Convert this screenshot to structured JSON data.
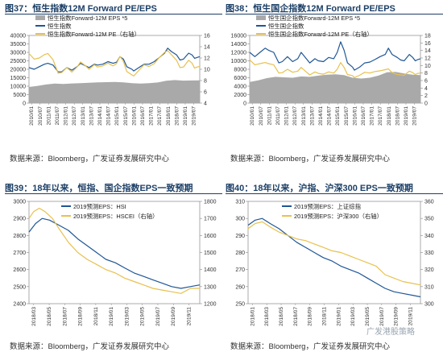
{
  "colors": {
    "navy": "#1f5696",
    "gold": "#e8c14e",
    "gray": "#a9a9a9",
    "title": "#1c3f66"
  },
  "chart_data": [
    {
      "id": "fig37",
      "type": "line",
      "title": "图37：恒生指数12M Forward PE/EPS",
      "source": "数据来源：Bloomberg，广发证券发展研究中心",
      "legend": [
        "恒生指数Forward-12M EPS *5",
        "恒生指数",
        "恒生指数Forward-12M PE（右轴）"
      ],
      "yleft": {
        "min": 0,
        "max": 40000,
        "ticks": [
          0,
          5000,
          10000,
          15000,
          20000,
          25000,
          30000,
          35000,
          40000
        ],
        "labels": [
          "0",
          "5000",
          "10000",
          "15000",
          "20000",
          "25000",
          "30000",
          "35000",
          "40000"
        ]
      },
      "yright": {
        "min": 4,
        "max": 16,
        "ticks": [
          4,
          6,
          8,
          10,
          12,
          14,
          16
        ],
        "labels": [
          "4",
          "6",
          "8",
          "10",
          "12",
          "14",
          "16"
        ]
      },
      "x_labels": [
        "2010/01",
        "2010/07",
        "2011/01",
        "2011/07",
        "2012/01",
        "2012/07",
        "2013/01",
        "2013/07",
        "2014/01",
        "2014/07",
        "2015/01",
        "2015/07",
        "2016/01",
        "2016/07",
        "2017/01",
        "2017/07",
        "2018/01",
        "2018/07",
        "2019/01",
        "2019/07"
      ],
      "x_range": [
        2010.0,
        2019.95
      ],
      "series": [
        {
          "name": "恒生指数Forward-12M EPS *5",
          "kind": "area",
          "color": "#a9a9a9",
          "axis": "left",
          "x": [
            2010.0,
            2010.5,
            2011.0,
            2011.5,
            2012.0,
            2012.5,
            2013.0,
            2013.5,
            2014.0,
            2014.5,
            2015.0,
            2015.5,
            2016.0,
            2016.5,
            2017.0,
            2017.5,
            2018.0,
            2018.5,
            2019.0,
            2019.5,
            2019.95
          ],
          "y": [
            9500,
            10200,
            11000,
            11500,
            11300,
            11600,
            11800,
            12000,
            12300,
            12400,
            12500,
            12300,
            11800,
            11500,
            11800,
            12200,
            13200,
            13600,
            13300,
            13400,
            13500
          ]
        },
        {
          "name": "恒生指数",
          "kind": "line",
          "color": "#1f5696",
          "axis": "left",
          "x": [
            2010.0,
            2010.3,
            2010.6,
            2010.9,
            2011.1,
            2011.4,
            2011.7,
            2011.9,
            2012.2,
            2012.5,
            2012.8,
            2013.0,
            2013.3,
            2013.5,
            2013.8,
            2014.0,
            2014.3,
            2014.6,
            2014.9,
            2015.1,
            2015.3,
            2015.5,
            2015.7,
            2016.0,
            2016.1,
            2016.4,
            2016.7,
            2017.0,
            2017.3,
            2017.6,
            2017.9,
            2018.08,
            2018.3,
            2018.6,
            2018.8,
            2019.0,
            2019.3,
            2019.5,
            2019.65,
            2019.8,
            2019.95
          ],
          "y": [
            21000,
            20000,
            21500,
            23000,
            23500,
            22500,
            18500,
            18500,
            21000,
            19500,
            21500,
            23500,
            22000,
            21000,
            23000,
            22500,
            23000,
            24500,
            23500,
            24200,
            27500,
            26000,
            21500,
            20000,
            19000,
            21000,
            23000,
            23000,
            24500,
            27000,
            29500,
            32500,
            30500,
            28500,
            25500,
            26000,
            29500,
            28500,
            26500,
            27000,
            27500
          ]
        },
        {
          "name": "恒生指数Forward-12M PE（右轴）",
          "kind": "line",
          "color": "#e8c14e",
          "axis": "right",
          "x": [
            2010.0,
            2010.3,
            2010.6,
            2010.9,
            2011.1,
            2011.4,
            2011.7,
            2011.9,
            2012.2,
            2012.5,
            2012.8,
            2013.0,
            2013.3,
            2013.5,
            2013.8,
            2014.0,
            2014.3,
            2014.6,
            2014.9,
            2015.1,
            2015.3,
            2015.5,
            2015.7,
            2016.0,
            2016.1,
            2016.4,
            2016.7,
            2017.0,
            2017.3,
            2017.6,
            2017.9,
            2018.08,
            2018.3,
            2018.6,
            2018.8,
            2019.0,
            2019.3,
            2019.5,
            2019.65,
            2019.8,
            2019.95
          ],
          "y": [
            12.8,
            11.8,
            12.0,
            12.6,
            12.8,
            11.7,
            9.3,
            9.4,
            10.3,
            9.5,
            10.4,
            11.3,
            10.6,
            10.0,
            10.8,
            10.4,
            10.6,
            11.1,
            10.6,
            11.0,
            12.3,
            11.4,
            9.6,
            9.0,
            8.8,
            9.8,
            10.8,
            10.5,
            11.0,
            12.1,
            13.0,
            13.3,
            12.6,
            11.6,
            10.3,
            10.4,
            11.6,
            11.1,
            10.2,
            10.4,
            10.5
          ]
        }
      ]
    },
    {
      "id": "fig38",
      "type": "line",
      "title": "图38：恒生国企指数12M Forward PE/EPS",
      "source": "数据来源：Bloomberg，广发证券发展研究中心",
      "legend": [
        "恒生国企指数Forward-12M EPS *5",
        "恒生国企指数",
        "恒生国企指数Forward-12M PE（右轴）"
      ],
      "yleft": {
        "min": 0,
        "max": 16000,
        "ticks": [
          0,
          2000,
          4000,
          6000,
          8000,
          10000,
          12000,
          14000,
          16000
        ],
        "labels": [
          "0",
          "2000",
          "4000",
          "6000",
          "8000",
          "10000",
          "12000",
          "14000",
          "16000"
        ]
      },
      "yright": {
        "min": 0,
        "max": 18,
        "ticks": [
          0,
          2,
          4,
          6,
          8,
          10,
          12,
          14,
          16,
          18
        ],
        "labels": [
          "0",
          "2",
          "4",
          "6",
          "8",
          "10",
          "12",
          "14",
          "16",
          "18"
        ]
      },
      "x_labels": [
        "2010/01",
        "2010/07",
        "2011/01",
        "2011/07",
        "2012/01",
        "2012/07",
        "2013/01",
        "2013/07",
        "2014/01",
        "2014/07",
        "2015/01",
        "2015/07",
        "2016/01",
        "2016/07",
        "2017/01",
        "2017/07",
        "2018/01",
        "2018/07",
        "2019/01",
        "2019/07"
      ],
      "x_range": [
        2010.0,
        2019.95
      ],
      "series": [
        {
          "name": "恒生国企指数Forward-12M EPS *5",
          "kind": "area",
          "color": "#a9a9a9",
          "axis": "left",
          "x": [
            2010.0,
            2010.5,
            2011.0,
            2011.5,
            2012.0,
            2012.5,
            2013.0,
            2013.5,
            2014.0,
            2014.5,
            2015.0,
            2015.5,
            2016.0,
            2016.5,
            2017.0,
            2017.5,
            2018.0,
            2018.5,
            2019.0,
            2019.5,
            2019.95
          ],
          "y": [
            5000,
            5400,
            5900,
            6200,
            6100,
            6000,
            6300,
            6200,
            6500,
            6700,
            6800,
            6600,
            6000,
            5800,
            6000,
            6500,
            7300,
            7400,
            7000,
            6700,
            6600
          ]
        },
        {
          "name": "恒生国企指数",
          "kind": "line",
          "color": "#1f5696",
          "axis": "left",
          "x": [
            2010.0,
            2010.3,
            2010.6,
            2010.9,
            2011.1,
            2011.4,
            2011.7,
            2011.9,
            2012.2,
            2012.5,
            2012.8,
            2013.0,
            2013.3,
            2013.5,
            2013.8,
            2014.0,
            2014.3,
            2014.6,
            2014.9,
            2015.1,
            2015.3,
            2015.5,
            2015.7,
            2016.0,
            2016.1,
            2016.4,
            2016.7,
            2017.0,
            2017.3,
            2017.6,
            2017.9,
            2018.08,
            2018.3,
            2018.6,
            2018.8,
            2019.0,
            2019.3,
            2019.5,
            2019.65,
            2019.8,
            2019.95
          ],
          "y": [
            12000,
            11000,
            12000,
            13000,
            12500,
            12000,
            9500,
            9800,
            11000,
            9800,
            10500,
            12000,
            10500,
            9500,
            10500,
            10000,
            9800,
            10800,
            10500,
            12000,
            14500,
            12500,
            9500,
            8500,
            7800,
            8500,
            9500,
            9700,
            10300,
            11000,
            11500,
            13000,
            11500,
            10800,
            10200,
            10000,
            11500,
            10800,
            10000,
            10300,
            10500
          ]
        },
        {
          "name": "恒生国企指数Forward-12M PE（右轴）",
          "kind": "line",
          "color": "#e8c14e",
          "axis": "right",
          "x": [
            2010.0,
            2010.3,
            2010.6,
            2010.9,
            2011.1,
            2011.4,
            2011.7,
            2011.9,
            2012.2,
            2012.5,
            2012.8,
            2013.0,
            2013.3,
            2013.5,
            2013.8,
            2014.0,
            2014.3,
            2014.6,
            2014.9,
            2015.1,
            2015.3,
            2015.5,
            2015.7,
            2016.0,
            2016.1,
            2016.4,
            2016.7,
            2017.0,
            2017.3,
            2017.6,
            2017.9,
            2018.08,
            2018.3,
            2018.6,
            2018.8,
            2019.0,
            2019.3,
            2019.5,
            2019.65,
            2019.8,
            2019.95
          ],
          "y": [
            11.5,
            10.2,
            10.5,
            10.8,
            10.5,
            10.2,
            8.0,
            8.1,
            9.0,
            8.2,
            8.5,
            9.5,
            8.3,
            7.5,
            8.3,
            7.9,
            7.7,
            8.3,
            8.0,
            9.0,
            10.8,
            9.5,
            7.6,
            7.3,
            6.8,
            7.4,
            8.2,
            8.0,
            8.4,
            8.6,
            8.9,
            9.1,
            8.1,
            7.6,
            7.5,
            7.4,
            8.5,
            8.1,
            7.6,
            7.9,
            8.0
          ]
        }
      ]
    },
    {
      "id": "fig39",
      "type": "line",
      "title": "图39：18年以来，恒指、国企指数EPS一致预期",
      "source": "数据来源：Bloomberg，广发证券发展研究中心",
      "legend": [
        "2019预测EPS：HSI",
        "2019预测EPS：HSCEI（右轴）"
      ],
      "yleft": {
        "min": 2400,
        "max": 3000,
        "ticks": [
          2400,
          2500,
          2600,
          2700,
          2800,
          2900,
          3000
        ],
        "labels": [
          "2400",
          "2500",
          "2600",
          "2700",
          "2800",
          "2900",
          "3000"
        ]
      },
      "yright": {
        "min": 1200,
        "max": 1800,
        "ticks": [
          1200,
          1300,
          1400,
          1500,
          1600,
          1700,
          1800
        ],
        "labels": [
          "1200",
          "1300",
          "1400",
          "1500",
          "1600",
          "1700",
          "1800"
        ]
      },
      "x_labels": [
        "2018/03",
        "2018/05",
        "2018/07",
        "2018/09",
        "2018/11",
        "2019/01",
        "2019/03",
        "2019/05",
        "2019/07",
        "2019/09",
        "2019/11"
      ],
      "x_range": [
        2018.13,
        2019.95
      ],
      "series": [
        {
          "name": "2019预测EPS：HSI",
          "kind": "line",
          "color": "#1f5696",
          "axis": "left",
          "x": [
            2018.13,
            2018.2,
            2018.27,
            2018.35,
            2018.45,
            2018.55,
            2018.65,
            2018.75,
            2018.85,
            2018.95,
            2019.05,
            2019.15,
            2019.25,
            2019.35,
            2019.45,
            2019.55,
            2019.65,
            2019.75,
            2019.85,
            2019.95
          ],
          "y": [
            2820,
            2870,
            2900,
            2890,
            2860,
            2830,
            2780,
            2740,
            2700,
            2660,
            2640,
            2610,
            2580,
            2560,
            2540,
            2520,
            2500,
            2490,
            2500,
            2510
          ]
        },
        {
          "name": "2019预测EPS：HSCEI（右轴）",
          "kind": "line",
          "color": "#e8c14e",
          "axis": "right",
          "x": [
            2018.13,
            2018.18,
            2018.24,
            2018.3,
            2018.38,
            2018.45,
            2018.55,
            2018.65,
            2018.75,
            2018.85,
            2018.95,
            2019.05,
            2019.15,
            2019.25,
            2019.35,
            2019.45,
            2019.55,
            2019.65,
            2019.75,
            2019.85,
            2019.95
          ],
          "y": [
            1700,
            1740,
            1760,
            1740,
            1700,
            1640,
            1560,
            1500,
            1460,
            1430,
            1400,
            1380,
            1350,
            1330,
            1310,
            1290,
            1280,
            1270,
            1260,
            1290,
            1290
          ]
        }
      ]
    },
    {
      "id": "fig40",
      "type": "line",
      "title": "图40：18年以来，沪指、沪深300 EPS一致预期",
      "source": "数据来源：Bloomberg，广发证券发展研究中心",
      "watermark": "广发港股策略",
      "legend": [
        "2019预测EPS：上证综指",
        "2019预测EPS：沪深300（右轴）"
      ],
      "yleft": {
        "min": 250,
        "max": 310,
        "ticks": [
          250,
          260,
          270,
          280,
          290,
          300,
          310
        ],
        "labels": [
          "250",
          "260",
          "270",
          "280",
          "290",
          "300",
          "310"
        ]
      },
      "yright": {
        "min": 300,
        "max": 360,
        "ticks": [
          300,
          310,
          320,
          330,
          340,
          350,
          360
        ],
        "labels": [
          "300",
          "310",
          "320",
          "330",
          "340",
          "350",
          "360"
        ]
      },
      "x_labels": [
        "2018/01",
        "2018/03",
        "2018/05",
        "2018/07",
        "2018/09",
        "2018/11",
        "2019/01",
        "2019/03",
        "2019/05",
        "2019/07",
        "2019/09",
        "2019/11"
      ],
      "x_range": [
        2018.0,
        2019.95
      ],
      "series": [
        {
          "name": "2019预测EPS：上证综指",
          "kind": "line",
          "color": "#1f5696",
          "axis": "left",
          "x": [
            2018.0,
            2018.08,
            2018.16,
            2018.25,
            2018.35,
            2018.45,
            2018.55,
            2018.65,
            2018.75,
            2018.85,
            2018.95,
            2019.05,
            2019.15,
            2019.25,
            2019.35,
            2019.45,
            2019.55,
            2019.65,
            2019.75,
            2019.85,
            2019.95
          ],
          "y": [
            296,
            299,
            300,
            297,
            294,
            290,
            286,
            283,
            280,
            277,
            275,
            272,
            270,
            268,
            265,
            262,
            259,
            257,
            256,
            255,
            254
          ]
        },
        {
          "name": "2019预测EPS：沪深300（右轴）",
          "kind": "line",
          "color": "#e8c14e",
          "axis": "right",
          "x": [
            2018.0,
            2018.08,
            2018.16,
            2018.25,
            2018.35,
            2018.45,
            2018.55,
            2018.65,
            2018.75,
            2018.85,
            2018.95,
            2019.05,
            2019.15,
            2019.25,
            2019.35,
            2019.45,
            2019.55,
            2019.65,
            2019.75,
            2019.85,
            2019.95
          ],
          "y": [
            344,
            347,
            348,
            345,
            342,
            340,
            338,
            337,
            335,
            333,
            331,
            330,
            328,
            326,
            324,
            322,
            317,
            315,
            313,
            312,
            311
          ]
        }
      ]
    }
  ]
}
